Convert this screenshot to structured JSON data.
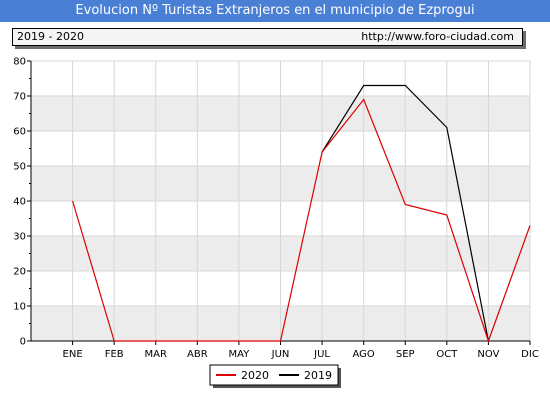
{
  "title": "Evolucion Nº Turistas Extranjeros en el municipio de Ezprogui",
  "info": {
    "years": "2019 - 2020",
    "url": "http://www.foro-ciudad.com"
  },
  "colors": {
    "title_bg": "#4a7fd6",
    "series_2020": "#dd0000",
    "series_2019": "#000000",
    "band": "#ececec",
    "grid": "#d7d7d7"
  },
  "chart_data": {
    "type": "line",
    "categories": [
      "ENE",
      "FEB",
      "MAR",
      "ABR",
      "MAY",
      "JUN",
      "JUL",
      "AGO",
      "SEP",
      "OCT",
      "NOV",
      "DIC"
    ],
    "ylim": [
      0,
      80
    ],
    "yticks": [
      0,
      10,
      20,
      30,
      40,
      50,
      60,
      70,
      80
    ],
    "grid": true,
    "legend_placement": "bottom-center",
    "series": [
      {
        "name": "2020",
        "color": "#dd0000",
        "values": [
          40,
          0,
          0,
          0,
          0,
          0,
          54,
          69,
          39,
          36,
          0,
          33
        ]
      },
      {
        "name": "2019",
        "color": "#000000",
        "values": [
          null,
          null,
          null,
          null,
          null,
          null,
          54,
          73,
          73,
          61,
          0,
          null
        ]
      }
    ]
  }
}
